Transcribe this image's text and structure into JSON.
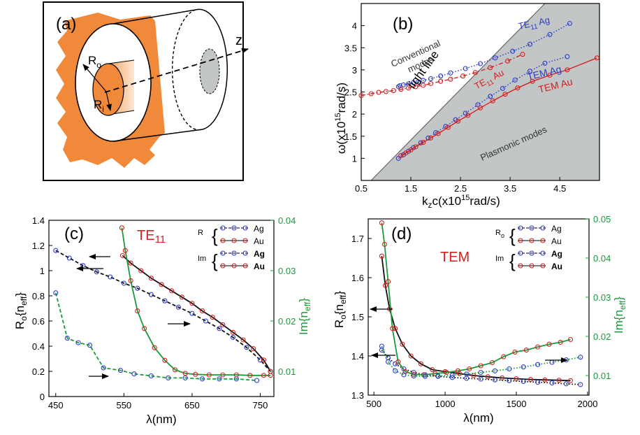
{
  "panel_labels": [
    "(a)",
    "(b)",
    "(c)",
    "(d)"
  ],
  "colors": {
    "orange": "#f08a3a",
    "blue": "#2a3cc8",
    "red": "#d42020",
    "green": "#1a9a3a",
    "gray": "#c3c6c6",
    "black": "#111111"
  },
  "schematic": {
    "labels": {
      "outer_radius": "R",
      "outer_sub": "o",
      "inner_radius": "R",
      "inner_sub": "i",
      "axis": "z"
    }
  },
  "chart_data": [
    {
      "panel": "(b)",
      "type": "line",
      "xlabel": "k_zc(x10^15 rad/s)",
      "ylabel": "ω(x10^15 rad/s)",
      "xlim": [
        0.5,
        5.3
      ],
      "ylim": [
        0.5,
        4.5
      ],
      "xticks": [
        "0.5",
        "1.5",
        "2.5",
        "3.5",
        "4.5"
      ],
      "yticks": [
        "1",
        "1.5",
        "2",
        "2.5",
        "3",
        "3.5",
        "4"
      ],
      "light_line": {
        "label": "light line",
        "from": [
          0.7,
          0.5
        ],
        "to": [
          4.2,
          4.5
        ]
      },
      "region_labels": {
        "conventional": [
          "Conventional",
          "modes"
        ],
        "plasmonic": "Plasmonic modes"
      },
      "series": [
        {
          "name": "TE11 Ag",
          "label_main": "TE",
          "label_sub": "11",
          "label_tail": " Ag",
          "color": "#2a3cc8",
          "marker": true,
          "style": "dotted",
          "x": [
            1.25,
            1.28,
            1.35,
            1.45,
            1.55,
            1.65,
            1.75,
            1.9,
            2.1,
            2.3,
            2.6,
            2.9,
            3.2,
            3.55,
            3.9,
            4.3,
            4.7
          ],
          "y": [
            2.62,
            2.64,
            2.66,
            2.68,
            2.71,
            2.73,
            2.76,
            2.8,
            2.86,
            2.93,
            3.03,
            3.14,
            3.27,
            3.42,
            3.58,
            3.8,
            4.05
          ]
        },
        {
          "name": "TE11 Au",
          "label_main": "TE",
          "label_sub": "11",
          "label_tail": " Au",
          "color": "#d42020",
          "marker": true,
          "style": "dashdot",
          "x": [
            0.5,
            0.7,
            0.85,
            1.0,
            1.15,
            1.3,
            1.45,
            1.6,
            1.75,
            1.9,
            2.1,
            2.3,
            2.55,
            2.8,
            3.1,
            3.45,
            3.75
          ],
          "y": [
            2.42,
            2.46,
            2.49,
            2.51,
            2.53,
            2.56,
            2.59,
            2.62,
            2.65,
            2.69,
            2.74,
            2.79,
            2.86,
            2.94,
            3.05,
            3.2,
            3.35
          ]
        },
        {
          "name": "TEM Ag",
          "label_main": "TEM Ag",
          "color": "#2a3cc8",
          "marker": true,
          "style": "dotted",
          "x": [
            1.25,
            1.35,
            1.45,
            1.55,
            1.7,
            1.85,
            2.0,
            2.2,
            2.4,
            2.6,
            2.85,
            3.1,
            3.35,
            3.6,
            3.9,
            4.2,
            4.65
          ],
          "y": [
            1.0,
            1.08,
            1.16,
            1.24,
            1.35,
            1.46,
            1.58,
            1.72,
            1.87,
            2.02,
            2.21,
            2.4,
            2.58,
            2.77,
            2.97,
            3.15,
            3.3
          ]
        },
        {
          "name": "TEM Au",
          "label_main": "TEM Au",
          "color": "#d42020",
          "marker": true,
          "style": "solid",
          "x": [
            1.3,
            1.4,
            1.5,
            1.6,
            1.75,
            1.9,
            2.05,
            2.25,
            2.45,
            2.65,
            2.9,
            3.15,
            3.4,
            3.65,
            3.95,
            4.3,
            4.65,
            5.25
          ],
          "y": [
            1.06,
            1.12,
            1.19,
            1.26,
            1.36,
            1.46,
            1.56,
            1.7,
            1.84,
            1.97,
            2.14,
            2.3,
            2.45,
            2.59,
            2.74,
            2.88,
            3.0,
            3.27
          ]
        }
      ]
    },
    {
      "panel": "(c)",
      "type": "line",
      "title_main": "TE",
      "title_sub": "11",
      "xlabel": "λ(nm)",
      "ylabel": "R_o{n_eff}",
      "y2label": "Im{n_eff}",
      "xlim": [
        440,
        770
      ],
      "ylim": [
        0,
        1.4
      ],
      "y2lim": [
        0.005,
        0.04
      ],
      "xticks": [
        "450",
        "550",
        "650",
        "750"
      ],
      "yticks": [
        "0",
        "0.2",
        "0.4",
        "0.6",
        "0.8",
        "1",
        "1.2",
        "1.4"
      ],
      "y2ticks": [
        "0.01",
        "0.02",
        "0.03",
        "0.04"
      ],
      "legend": {
        "group1_label": "R",
        "group2_label": "Im",
        "entries": [
          {
            "label": "Ag",
            "color": "#2a3cc8",
            "bold": false
          },
          {
            "label": "Au",
            "color": "#d42020",
            "bold": false
          },
          {
            "label": "Ag",
            "color": "#2a3cc8",
            "bold": true
          },
          {
            "label": "Au",
            "color": "#d42020",
            "bold": true
          }
        ]
      },
      "series": [
        {
          "name": "Ag real",
          "axis": "left",
          "color": "#2a3cc8",
          "style": "dashed",
          "line": "#111111",
          "x": [
            450,
            470,
            490,
            510,
            530,
            550,
            570,
            590,
            610,
            630,
            650,
            670,
            690,
            710,
            730,
            750,
            765
          ],
          "y": [
            1.16,
            1.1,
            1.04,
            0.99,
            0.95,
            0.9,
            0.86,
            0.81,
            0.76,
            0.71,
            0.66,
            0.6,
            0.54,
            0.47,
            0.39,
            0.29,
            0.2
          ]
        },
        {
          "name": "Au real",
          "axis": "left",
          "color": "#d42020",
          "style": "solid",
          "line": "#111111",
          "x": [
            548,
            560,
            575,
            590,
            605,
            620,
            635,
            650,
            665,
            680,
            695,
            710,
            725,
            740,
            755,
            765
          ],
          "y": [
            1.12,
            1.06,
            1.0,
            0.94,
            0.89,
            0.84,
            0.79,
            0.74,
            0.68,
            0.63,
            0.57,
            0.51,
            0.45,
            0.38,
            0.29,
            0.2
          ]
        },
        {
          "name": "Ag imag",
          "axis": "right",
          "color": "#2a3cc8",
          "style": "dashed",
          "line": "#1a9a3a",
          "x": [
            450,
            467,
            483,
            500,
            520,
            545,
            565,
            590,
            615,
            640,
            665,
            690,
            715,
            745
          ],
          "y": [
            0.0256,
            0.0166,
            0.0157,
            0.0152,
            0.0107,
            0.0102,
            0.0095,
            0.0091,
            0.0087,
            0.0087,
            0.0085,
            0.0085,
            0.0085,
            0.0082
          ]
        },
        {
          "name": "Au imag",
          "axis": "right",
          "color": "#d42020",
          "style": "solid",
          "line": "#1a9a3a",
          "x": [
            547,
            552,
            560,
            570,
            580,
            595,
            610,
            625,
            640,
            655,
            675,
            695,
            715,
            735,
            755,
            765
          ],
          "y": [
            0.0385,
            0.034,
            0.028,
            0.022,
            0.0185,
            0.0147,
            0.0122,
            0.0103,
            0.0096,
            0.0094,
            0.0093,
            0.0093,
            0.0093,
            0.0092,
            0.0092,
            0.0092
          ]
        }
      ]
    },
    {
      "panel": "(d)",
      "type": "line",
      "title": "TEM",
      "xlabel": "λ(nm)",
      "ylabel": "R_o{n_eff}",
      "y2label": "Im{n_eff}",
      "xlim": [
        460,
        2010
      ],
      "ylim": [
        1.3,
        1.75
      ],
      "y2lim": [
        0.005,
        0.05
      ],
      "xticks": [
        "500",
        "1000",
        "1500",
        "2000"
      ],
      "yticks": [
        "1.3",
        "1.4",
        "1.5",
        "1.6",
        "1.7"
      ],
      "y2ticks": [
        "0.01",
        "0.02",
        "0.03",
        "0.04",
        "0.05"
      ],
      "legend": {
        "group1_label": "R",
        "group1_sub": "o",
        "group2_label": "Im",
        "entries": [
          {
            "label": "Ag",
            "color": "#2a3cc8",
            "bold": false
          },
          {
            "label": "Au",
            "color": "#d42020",
            "bold": false
          },
          {
            "label": "Ag",
            "color": "#2a3cc8",
            "bold": true
          },
          {
            "label": "Au",
            "color": "#d42020",
            "bold": true
          }
        ]
      },
      "series": [
        {
          "name": "Au real",
          "axis": "left",
          "color": "#d42020",
          "style": "solid",
          "line": "#111111",
          "x": [
            555,
            580,
            610,
            650,
            700,
            760,
            830,
            910,
            1000,
            1100,
            1200,
            1300,
            1400,
            1500,
            1600,
            1700,
            1800,
            1880
          ],
          "y": [
            1.655,
            1.58,
            1.52,
            1.47,
            1.43,
            1.4,
            1.38,
            1.365,
            1.36,
            1.355,
            1.35,
            1.347,
            1.344,
            1.342,
            1.34,
            1.339,
            1.338,
            1.337
          ]
        },
        {
          "name": "Ag real",
          "axis": "left",
          "color": "#2a3cc8",
          "style": "dotted",
          "line": "#111111",
          "x": [
            555,
            600,
            650,
            710,
            780,
            860,
            950,
            1050,
            1150,
            1250,
            1350,
            1450,
            1550,
            1650,
            1750,
            1850,
            1950
          ],
          "y": [
            1.415,
            1.395,
            1.38,
            1.367,
            1.358,
            1.352,
            1.348,
            1.345,
            1.343,
            1.341,
            1.339,
            1.337,
            1.335,
            1.333,
            1.331,
            1.329,
            1.327
          ]
        },
        {
          "name": "Au imag",
          "axis": "right",
          "color": "#d42020",
          "style": "solid",
          "line": "#1a9a3a",
          "x": [
            555,
            575,
            600,
            630,
            670,
            720,
            780,
            850,
            930,
            1010,
            1090,
            1170,
            1250,
            1330,
            1410,
            1490,
            1570,
            1650,
            1730,
            1810,
            1880
          ],
          "y": [
            0.049,
            0.0435,
            0.034,
            0.022,
            0.0135,
            0.011,
            0.0103,
            0.0102,
            0.0105,
            0.0108,
            0.0112,
            0.0117,
            0.0125,
            0.0133,
            0.0148,
            0.016,
            0.0165,
            0.0173,
            0.018,
            0.0185,
            0.0192
          ]
        },
        {
          "name": "Ag imag",
          "axis": "right",
          "color": "#2a3cc8",
          "style": "dotted",
          "line": "#1a9a3a",
          "x": [
            555,
            600,
            650,
            710,
            780,
            860,
            950,
            1050,
            1150,
            1250,
            1350,
            1450,
            1550,
            1650,
            1750,
            1850,
            1950
          ],
          "y": [
            0.0175,
            0.0135,
            0.0112,
            0.0102,
            0.0099,
            0.0098,
            0.0099,
            0.0101,
            0.0104,
            0.0108,
            0.0112,
            0.0117,
            0.0122,
            0.0128,
            0.0134,
            0.014,
            0.0147
          ]
        }
      ]
    }
  ]
}
